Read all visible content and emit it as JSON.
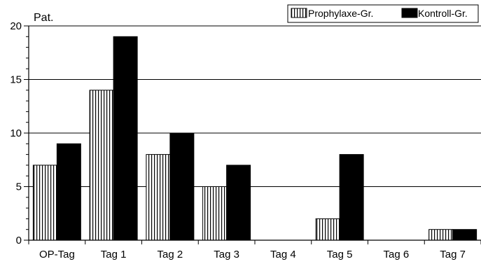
{
  "chart_data": {
    "type": "bar",
    "ylabel": "Pat.",
    "categories": [
      "OP-Tag",
      "Tag 1",
      "Tag 2",
      "Tag 3",
      "Tag 4",
      "Tag 5",
      "Tag 6",
      "Tag 7"
    ],
    "series": [
      {
        "name": "Prophylaxe-Gr.",
        "pattern": "vertical-stripes",
        "values": [
          7,
          14,
          8,
          5,
          0,
          2,
          0,
          1
        ]
      },
      {
        "name": "Kontroll-Gr.",
        "color": "#000000",
        "values": [
          9,
          19,
          10,
          7,
          0,
          8,
          0,
          1
        ]
      }
    ],
    "ylim": [
      0,
      20
    ],
    "yticks": [
      0,
      5,
      10,
      15,
      20
    ],
    "grid": "horizontal-major",
    "legend": "top-right"
  }
}
